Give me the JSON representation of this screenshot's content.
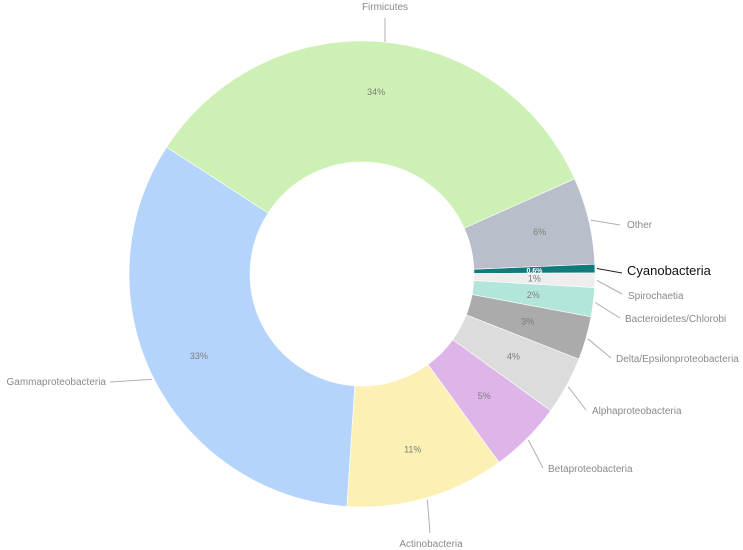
{
  "chart_data": {
    "type": "pie",
    "donut": true,
    "title": "",
    "slices": [
      {
        "label": "Firmicutes",
        "value": 34,
        "value_label": "34%",
        "color": "#cdf0b4"
      },
      {
        "label": "Other",
        "value": 6,
        "value_label": "6%",
        "color": "#b9bfca"
      },
      {
        "label": "Cyanobacteria",
        "value": 0.6,
        "value_label": "0.6%",
        "color": "#0f7b7b",
        "highlight": true
      },
      {
        "label": "Spirochaetia",
        "value": 1,
        "value_label": "1%",
        "color": "#eeeeee"
      },
      {
        "label": "Bacteroidetes/Chlorobi",
        "value": 2,
        "value_label": "2%",
        "color": "#b2e6da"
      },
      {
        "label": "Delta/Epsilonproteobacteria",
        "value": 3,
        "value_label": "3%",
        "color": "#ababab"
      },
      {
        "label": "Alphaproteobacteria",
        "value": 4,
        "value_label": "4%",
        "color": "#dcdcdc"
      },
      {
        "label": "Betaproteobacteria",
        "value": 5,
        "value_label": "5%",
        "color": "#ddb5e8"
      },
      {
        "label": "Actinobacteria",
        "value": 11,
        "value_label": "11%",
        "color": "#fdf0b5"
      },
      {
        "label": "Gammaproteobacteria",
        "value": 33,
        "value_label": "33%",
        "color": "#b5d4fc"
      }
    ]
  }
}
